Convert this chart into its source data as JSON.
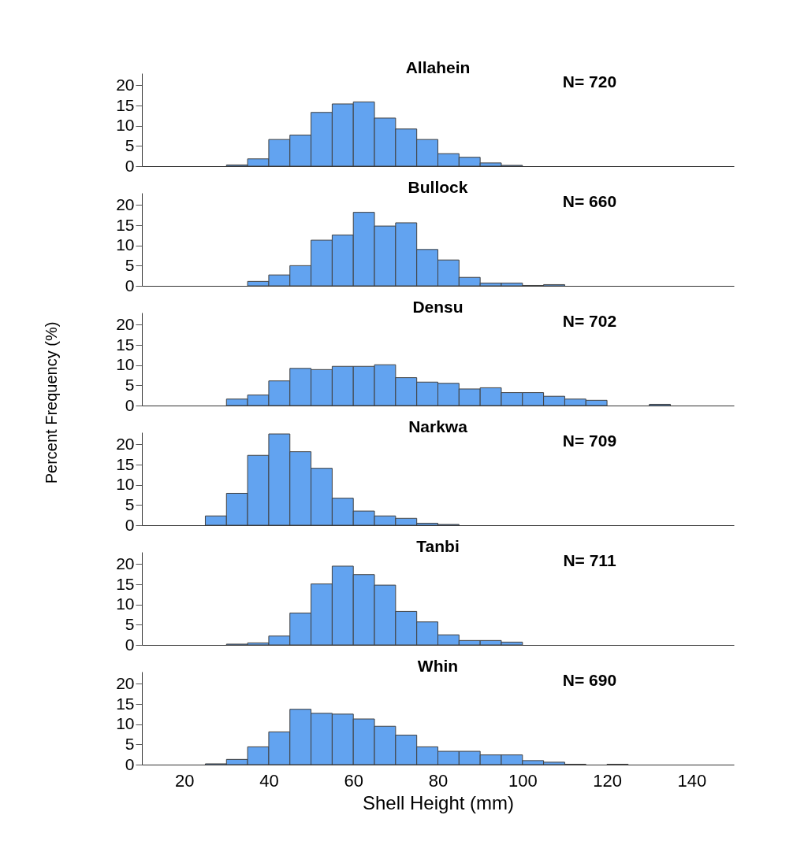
{
  "chart_data": [
    {
      "type": "histogram",
      "title": "Allahein",
      "annotations": [
        "N= 720"
      ],
      "bins": [
        30,
        35,
        40,
        45,
        50,
        55,
        60,
        65,
        70,
        75,
        80,
        85,
        90,
        95,
        100
      ],
      "values": [
        0.3,
        1.8,
        6.6,
        7.7,
        13.3,
        15.4,
        15.9,
        11.9,
        9.2,
        6.6,
        3.1,
        2.2,
        0.8,
        0.2
      ],
      "color": "#62a3f0",
      "xlim": [
        10,
        150
      ],
      "ylim": [
        0,
        23
      ],
      "yticks": [
        0,
        5,
        10,
        15,
        20
      ],
      "tick_labels": "y"
    },
    {
      "type": "histogram",
      "title": "Bullock",
      "annotations": [
        "N= 660"
      ],
      "bins": [
        35,
        40,
        45,
        50,
        55,
        60,
        65,
        70,
        75,
        80,
        85,
        90,
        95,
        100,
        105,
        110
      ],
      "values": [
        1.1,
        2.7,
        5.0,
        11.3,
        12.6,
        18.2,
        14.8,
        15.6,
        9.0,
        6.4,
        2.1,
        0.7,
        0.7,
        0.1,
        0.3
      ],
      "color": "#62a3f0",
      "xlim": [
        10,
        150
      ],
      "ylim": [
        0,
        23
      ],
      "yticks": [
        0,
        5,
        10,
        15,
        20
      ],
      "tick_labels": "y"
    },
    {
      "type": "histogram",
      "title": "Densu",
      "ylabel": "Percent Frequency (%)",
      "annotations": [
        "N= 702"
      ],
      "bins": [
        30,
        35,
        40,
        45,
        50,
        55,
        60,
        65,
        70,
        75,
        80,
        85,
        90,
        95,
        100,
        105,
        110,
        115,
        120,
        125,
        130,
        135
      ],
      "values": [
        1.6,
        2.6,
        6.1,
        9.2,
        8.9,
        9.7,
        9.7,
        10.1,
        6.9,
        5.8,
        5.5,
        4.1,
        4.4,
        3.2,
        3.2,
        2.3,
        1.6,
        1.3,
        null,
        null,
        0.3
      ],
      "color": "#62a3f0",
      "xlim": [
        10,
        150
      ],
      "ylim": [
        0,
        23
      ],
      "yticks": [
        0,
        5,
        10,
        15,
        20
      ],
      "tick_labels": "y"
    },
    {
      "type": "histogram",
      "title": "Narkwa",
      "annotations": [
        "N= 709"
      ],
      "bins": [
        25,
        30,
        35,
        40,
        45,
        50,
        55,
        60,
        65,
        70,
        75,
        80,
        85
      ],
      "values": [
        2.3,
        7.9,
        17.3,
        22.6,
        18.2,
        14.1,
        6.7,
        3.5,
        2.3,
        1.7,
        0.5,
        0.2
      ],
      "color": "#62a3f0",
      "xlim": [
        10,
        150
      ],
      "ylim": [
        0,
        23
      ],
      "yticks": [
        0,
        5,
        10,
        15,
        20
      ],
      "tick_labels": "y"
    },
    {
      "type": "histogram",
      "title": "Tanbi",
      "annotations": [
        "N= 711"
      ],
      "bins": [
        30,
        35,
        40,
        45,
        50,
        55,
        60,
        65,
        70,
        75,
        80,
        85,
        90,
        95,
        100
      ],
      "values": [
        0.2,
        0.5,
        2.2,
        7.9,
        15.1,
        19.5,
        17.4,
        14.8,
        8.3,
        5.7,
        2.5,
        1.1,
        1.1,
        0.7
      ],
      "color": "#62a3f0",
      "xlim": [
        10,
        150
      ],
      "ylim": [
        0,
        23
      ],
      "yticks": [
        0,
        5,
        10,
        15,
        20
      ],
      "tick_labels": "y"
    },
    {
      "type": "histogram",
      "title": "Whin",
      "xlabel": "Shell Height (mm)",
      "annotations": [
        "N= 690"
      ],
      "bins": [
        25,
        30,
        35,
        40,
        45,
        50,
        55,
        60,
        65,
        70,
        75,
        80,
        85,
        90,
        95,
        100,
        105,
        110,
        115,
        120,
        125
      ],
      "values": [
        0.2,
        1.3,
        4.4,
        8.1,
        13.7,
        12.7,
        12.5,
        11.3,
        9.5,
        7.3,
        4.4,
        3.3,
        3.3,
        2.4,
        2.4,
        1.0,
        0.6,
        0.1,
        null,
        0.1
      ],
      "color": "#62a3f0",
      "xlim": [
        10,
        150
      ],
      "xticks": [
        20,
        40,
        60,
        80,
        100,
        120,
        140
      ],
      "ylim": [
        0,
        23
      ],
      "yticks": [
        0,
        5,
        10,
        15,
        20
      ]
    }
  ]
}
